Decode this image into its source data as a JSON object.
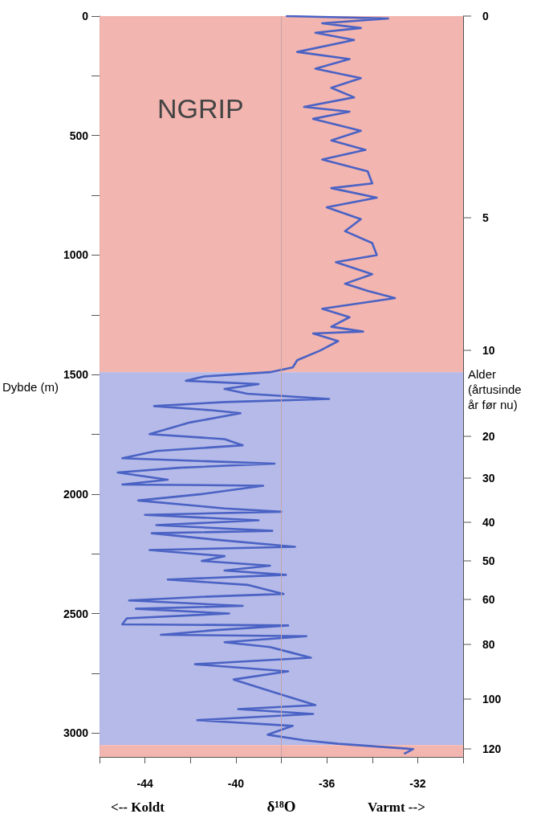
{
  "chart_data": {
    "type": "line",
    "xlabel": "δ¹⁸O",
    "ylabel": "Dybde (m)",
    "annotations": [
      "NGRIP",
      "<-- Koldt",
      "Varmt -->",
      "Alder (årtusinde år før nu)",
      "0",
      "5",
      "10",
      "20",
      "30",
      "40",
      "50",
      "60",
      "80",
      "100",
      "120"
    ],
    "xlim": [
      -46,
      -30
    ],
    "xticks": [
      {
        "value": -46,
        "label": null
      },
      -44,
      {
        "value": -42,
        "label": null
      },
      -40,
      {
        "value": -38,
        "label": null
      },
      -36,
      {
        "value": -34,
        "label": null
      },
      -32,
      {
        "value": -30,
        "label": null
      }
    ],
    "ylim": [
      3100,
      0
    ],
    "yticks": [
      0,
      {
        "value": 250,
        "label": null
      },
      500,
      {
        "value": 750,
        "label": null
      },
      1000,
      {
        "value": 1250,
        "label": null
      },
      1500,
      {
        "value": 1750,
        "label": null
      },
      2000,
      {
        "value": 2250,
        "label": null
      },
      2500,
      {
        "value": 2750,
        "label": null
      },
      3000
    ],
    "bands": [
      {
        "axis": "y",
        "from": 0,
        "to": 1490,
        "color": "#f2b5b0"
      },
      {
        "axis": "y",
        "from": 1490,
        "to": 3050,
        "color": "#b5bae8"
      },
      {
        "axis": "y",
        "from": 3050,
        "to": 3100,
        "color": "#f2b5b0"
      }
    ],
    "ref_lines": [
      {
        "axis": "x",
        "value": -38,
        "color": "#c4a4a8"
      }
    ],
    "grid": false,
    "series": [
      {
        "color": "#4a62c4",
        "x": [
          -37.8,
          -35.5,
          -33.3,
          -36.2,
          -34.5,
          -36.5,
          -34.8,
          -37.3,
          -35,
          -36.5,
          -34.5,
          -35.8,
          -34.8,
          -37,
          -35,
          -36.6,
          -34.5,
          -35.8,
          -34.3,
          -36.2,
          -34.2,
          -34,
          -35.8,
          -33.8,
          -36,
          -34.5,
          -35.2,
          -34,
          -33.8,
          -35.6,
          -34,
          -35.2,
          -34.2,
          -33,
          -36.2,
          -35,
          -35.8,
          -34.4,
          -36.6,
          -35.5,
          -36.3,
          -37.3,
          -37.5,
          -38.5,
          -41.4,
          -42.2,
          -39,
          -40.5,
          -39.5,
          -35.9,
          -40.5,
          -43.6,
          -41,
          -39.8,
          -42,
          -43.8,
          -40.5,
          -39.7,
          -43.5,
          -45,
          -38.3,
          -42.5,
          -45.2,
          -43,
          -45,
          -38.8,
          -41.5,
          -44.3,
          -40.5,
          -38,
          -44,
          -39,
          -43.5,
          -38.4,
          -43.7,
          -41,
          -37.4,
          -43.8,
          -40.5,
          -41.5,
          -38.5,
          -40.5,
          -37.8,
          -43,
          -39.5,
          -37.9,
          -41.5,
          -44.7,
          -39.7,
          -44.4,
          -40.3,
          -44.8,
          -45,
          -37.7,
          -41,
          -43.3,
          -36.9,
          -40.5,
          -38.5,
          -37.5,
          -36.7,
          -41.8,
          -37.7,
          -40.1,
          -38.3,
          -36.5,
          -39.9,
          -36.6,
          -41.7,
          -37.5,
          -38.6,
          -37,
          -35.5,
          -32.2,
          -32.6
        ],
        "values": [
          0,
          5,
          10,
          30,
          50,
          70,
          100,
          150,
          180,
          220,
          260,
          300,
          340,
          380,
          400,
          430,
          480,
          520,
          560,
          600,
          650,
          700,
          720,
          760,
          800,
          850,
          900,
          950,
          1000,
          1030,
          1080,
          1120,
          1150,
          1180,
          1225,
          1260,
          1300,
          1320,
          1328,
          1360,
          1400,
          1440,
          1470,
          1490,
          1508,
          1526,
          1540,
          1560,
          1580,
          1602,
          1615,
          1632,
          1650,
          1662,
          1700,
          1749,
          1770,
          1796,
          1820,
          1850,
          1873,
          1890,
          1910,
          1940,
          1960,
          1965,
          2000,
          2027,
          2060,
          2074,
          2087,
          2110,
          2130,
          2154,
          2164,
          2190,
          2221,
          2234,
          2260,
          2280,
          2300,
          2320,
          2338,
          2358,
          2380,
          2418,
          2430,
          2445,
          2468,
          2480,
          2500,
          2520,
          2545,
          2550,
          2570,
          2589,
          2595,
          2620,
          2640,
          2665,
          2685,
          2712,
          2742,
          2776,
          2830,
          2883,
          2900,
          2920,
          2946,
          2970,
          3007,
          3030,
          3045,
          3067,
          3087
        ]
      }
    ]
  }
}
